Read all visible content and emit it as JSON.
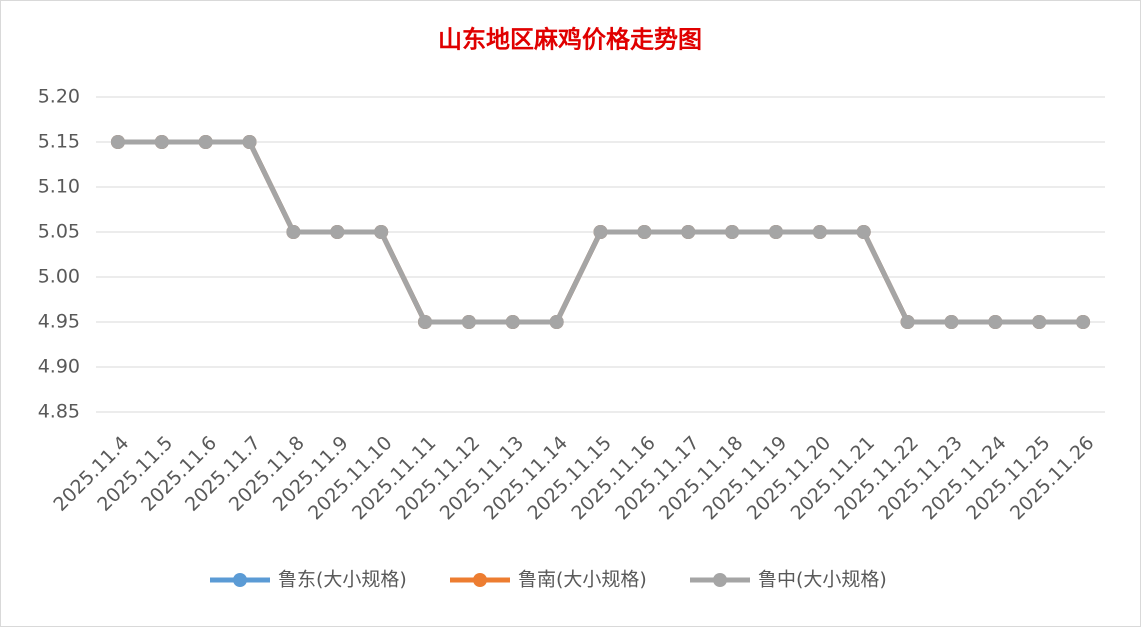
{
  "chart_data": {
    "type": "line",
    "title": "山东地区麻鸡价格走势图",
    "categories": [
      "2025.11.4",
      "2025.11.5",
      "2025.11.6",
      "2025.11.7",
      "2025.11.8",
      "2025.11.9",
      "2025.11.10",
      "2025.11.11",
      "2025.11.12",
      "2025.11.13",
      "2025.11.14",
      "2025.11.15",
      "2025.11.16",
      "2025.11.17",
      "2025.11.18",
      "2025.11.19",
      "2025.11.20",
      "2025.11.21",
      "2025.11.22",
      "2025.11.23",
      "2025.11.24",
      "2025.11.25",
      "2025.11.26"
    ],
    "series": [
      {
        "name": "鲁东(大小规格)",
        "color": "#5b9bd5",
        "values": [
          5.15,
          5.15,
          5.15,
          5.15,
          5.05,
          5.05,
          5.05,
          4.95,
          4.95,
          4.95,
          4.95,
          5.05,
          5.05,
          5.05,
          5.05,
          5.05,
          5.05,
          5.05,
          4.95,
          4.95,
          4.95,
          4.95,
          4.95
        ]
      },
      {
        "name": "鲁南(大小规格)",
        "color": "#ed7d31",
        "values": [
          5.15,
          5.15,
          5.15,
          5.15,
          5.05,
          5.05,
          5.05,
          4.95,
          4.95,
          4.95,
          4.95,
          5.05,
          5.05,
          5.05,
          5.05,
          5.05,
          5.05,
          5.05,
          4.95,
          4.95,
          4.95,
          4.95,
          4.95
        ]
      },
      {
        "name": "鲁中(大小规格)",
        "color": "#a5a5a5",
        "values": [
          5.15,
          5.15,
          5.15,
          5.15,
          5.05,
          5.05,
          5.05,
          4.95,
          4.95,
          4.95,
          4.95,
          5.05,
          5.05,
          5.05,
          5.05,
          5.05,
          5.05,
          5.05,
          4.95,
          4.95,
          4.95,
          4.95,
          4.95
        ]
      }
    ],
    "ylim": [
      4.85,
      5.2
    ],
    "yticks": [
      {
        "value": 4.85,
        "label": "4.85"
      },
      {
        "value": 4.9,
        "label": "4.90"
      },
      {
        "value": 4.95,
        "label": "4.95"
      },
      {
        "value": 5,
        "label": "5.00"
      },
      {
        "value": 5.05,
        "label": "5.05"
      },
      {
        "value": 5.1,
        "label": "5.10"
      },
      {
        "value": 5.15,
        "label": "5.15"
      },
      {
        "value": 5.2,
        "label": "5.20"
      }
    ],
    "grid": true,
    "legend": "bottom"
  }
}
